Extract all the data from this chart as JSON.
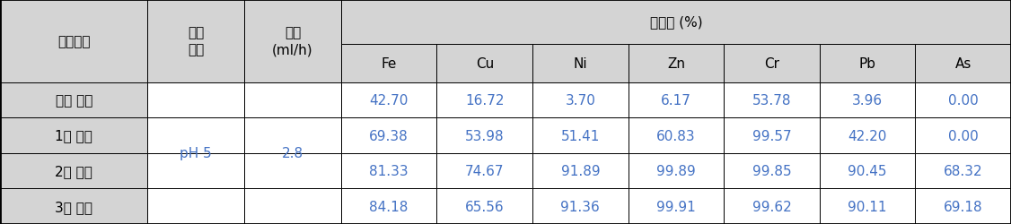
{
  "col1_headers": [
    "반응물질",
    "폐수\n조건",
    "유속\n(ml/h)"
  ],
  "removal_header": "제거율 (%)",
  "sub_headers": [
    "Fe",
    "Cu",
    "Ni",
    "Zn",
    "Cr",
    "Pb",
    "As"
  ],
  "rows": [
    [
      "기본 필터",
      "",
      "",
      "42.70",
      "16.72",
      "3.70",
      "6.17",
      "53.78",
      "3.96",
      "0.00"
    ],
    [
      "1차 코팅",
      "pH 5",
      "2.8",
      "69.38",
      "53.98",
      "51.41",
      "60.83",
      "99.57",
      "42.20",
      "0.00"
    ],
    [
      "2차 코팅",
      "",
      "",
      "81.33",
      "74.67",
      "91.89",
      "99.89",
      "99.85",
      "90.45",
      "68.32"
    ],
    [
      "3차 코팅",
      "",
      "",
      "84.18",
      "65.56",
      "91.36",
      "99.91",
      "99.62",
      "90.11",
      "69.18"
    ]
  ],
  "header_bg": "#d4d4d4",
  "cell_bg": "#ffffff",
  "border_color": "#000000",
  "text_color_header": "#000000",
  "text_color_data": "#4472c4",
  "font_size_header": 11,
  "font_size_data": 11,
  "font_size_sub": 11
}
